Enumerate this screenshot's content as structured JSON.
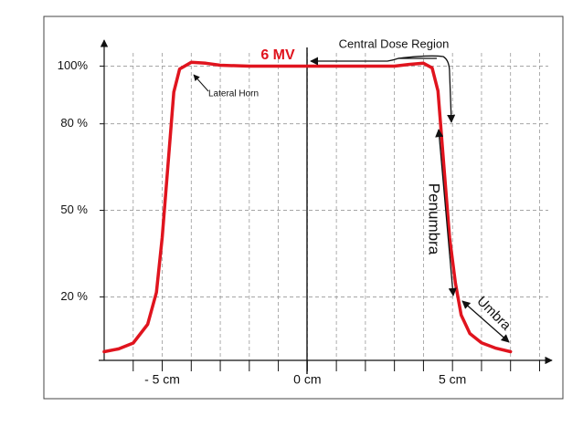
{
  "chart_data": {
    "type": "line",
    "series": [
      {
        "name": "6 MV",
        "color": "#e0141e",
        "x": [
          -7,
          -6.5,
          -6,
          -5.5,
          -5.2,
          -5,
          -4.8,
          -4.6,
          -4.4,
          -4,
          -3.5,
          -3,
          -2,
          -1,
          0,
          1,
          2,
          3,
          3.5,
          4,
          4.3,
          4.5,
          4.7,
          4.9,
          5.1,
          5.3,
          5.6,
          6,
          6.5,
          7
        ],
        "values": [
          1,
          2,
          4,
          10.5,
          21.6,
          40.6,
          66,
          91,
          99,
          101.3,
          101,
          100.3,
          100,
          100,
          100,
          100,
          100,
          100,
          100.6,
          101,
          99.4,
          91.4,
          66,
          40.6,
          24.8,
          13.7,
          7.3,
          4.1,
          2.2,
          1
        ]
      }
    ],
    "xlim": [
      -7,
      8.3
    ],
    "ylim": [
      -2,
      109
    ],
    "xticks": [
      {
        "value": -5,
        "label": "- 5 cm"
      },
      {
        "value": 0,
        "label": "0 cm"
      },
      {
        "value": 5,
        "label": "5 cm"
      }
    ],
    "xgrid": [
      -6,
      -5,
      -4,
      -3,
      -2,
      -1,
      0,
      1,
      2,
      3,
      4,
      5,
      6,
      7,
      8
    ],
    "yticks": [
      {
        "value": 20,
        "label": "20 %"
      },
      {
        "value": 50,
        "label": "50 %"
      },
      {
        "value": 80,
        "label": "80 %"
      },
      {
        "value": 100,
        "label": "100%"
      }
    ],
    "grid": true,
    "annotations": {
      "central": "Central Dose Region",
      "horn": "Lateral Horn",
      "penumbra": "Penumbra",
      "umbra": "Umbra"
    }
  }
}
